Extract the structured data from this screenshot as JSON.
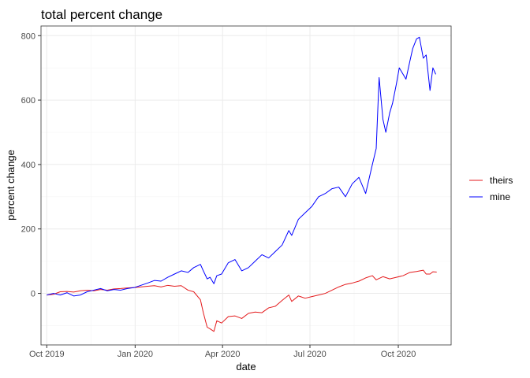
{
  "chart_data": {
    "type": "line",
    "title": "total percent change",
    "xlabel": "date",
    "ylabel": "percent change",
    "xlim": [
      "2019-09-25",
      "2020-11-25"
    ],
    "ylim": [
      -160,
      830
    ],
    "x_ticks": [
      {
        "date": "2019-10-01",
        "label": "Oct 2019"
      },
      {
        "date": "2020-01-01",
        "label": "Jan 2020"
      },
      {
        "date": "2020-04-01",
        "label": "Apr 2020"
      },
      {
        "date": "2020-07-01",
        "label": "Jul 2020"
      },
      {
        "date": "2020-10-01",
        "label": "Oct 2020"
      }
    ],
    "y_ticks": [
      0,
      200,
      400,
      600,
      800
    ],
    "grid": true,
    "legend_position": "right",
    "series": [
      {
        "name": "theirs",
        "color": "#e41a1c",
        "points": [
          [
            "2019-10-01",
            -5
          ],
          [
            "2019-10-08",
            -3
          ],
          [
            "2019-10-15",
            5
          ],
          [
            "2019-10-22",
            6
          ],
          [
            "2019-10-29",
            4
          ],
          [
            "2019-11-05",
            8
          ],
          [
            "2019-11-12",
            10
          ],
          [
            "2019-11-19",
            8
          ],
          [
            "2019-11-26",
            12
          ],
          [
            "2019-12-03",
            10
          ],
          [
            "2019-12-10",
            14
          ],
          [
            "2019-12-17",
            15
          ],
          [
            "2019-12-24",
            17
          ],
          [
            "2019-12-31",
            18
          ],
          [
            "2020-01-07",
            20
          ],
          [
            "2020-01-14",
            22
          ],
          [
            "2020-01-21",
            24
          ],
          [
            "2020-01-28",
            20
          ],
          [
            "2020-02-04",
            25
          ],
          [
            "2020-02-11",
            22
          ],
          [
            "2020-02-18",
            24
          ],
          [
            "2020-02-25",
            10
          ],
          [
            "2020-03-02",
            5
          ],
          [
            "2020-03-09",
            -20
          ],
          [
            "2020-03-12",
            -60
          ],
          [
            "2020-03-16",
            -105
          ],
          [
            "2020-03-19",
            -110
          ],
          [
            "2020-03-23",
            -118
          ],
          [
            "2020-03-26",
            -85
          ],
          [
            "2020-03-31",
            -92
          ],
          [
            "2020-04-07",
            -72
          ],
          [
            "2020-04-14",
            -70
          ],
          [
            "2020-04-21",
            -78
          ],
          [
            "2020-04-28",
            -62
          ],
          [
            "2020-05-05",
            -58
          ],
          [
            "2020-05-12",
            -60
          ],
          [
            "2020-05-19",
            -45
          ],
          [
            "2020-05-26",
            -40
          ],
          [
            "2020-06-02",
            -22
          ],
          [
            "2020-06-09",
            -5
          ],
          [
            "2020-06-12",
            -25
          ],
          [
            "2020-06-19",
            -8
          ],
          [
            "2020-06-26",
            -15
          ],
          [
            "2020-07-03",
            -10
          ],
          [
            "2020-07-10",
            -5
          ],
          [
            "2020-07-17",
            0
          ],
          [
            "2020-07-24",
            10
          ],
          [
            "2020-07-31",
            20
          ],
          [
            "2020-08-07",
            28
          ],
          [
            "2020-08-14",
            32
          ],
          [
            "2020-08-21",
            38
          ],
          [
            "2020-08-28",
            48
          ],
          [
            "2020-09-04",
            55
          ],
          [
            "2020-09-08",
            42
          ],
          [
            "2020-09-15",
            52
          ],
          [
            "2020-09-22",
            45
          ],
          [
            "2020-09-29",
            50
          ],
          [
            "2020-10-06",
            55
          ],
          [
            "2020-10-13",
            65
          ],
          [
            "2020-10-20",
            68
          ],
          [
            "2020-10-27",
            72
          ],
          [
            "2020-10-30",
            60
          ],
          [
            "2020-11-03",
            60
          ],
          [
            "2020-11-06",
            67
          ],
          [
            "2020-11-10",
            66
          ]
        ]
      },
      {
        "name": "mine",
        "color": "#0000ff",
        "points": [
          [
            "2019-10-01",
            -5
          ],
          [
            "2019-10-08",
            0
          ],
          [
            "2019-10-15",
            -5
          ],
          [
            "2019-10-22",
            2
          ],
          [
            "2019-10-29",
            -8
          ],
          [
            "2019-11-05",
            -5
          ],
          [
            "2019-11-12",
            5
          ],
          [
            "2019-11-19",
            10
          ],
          [
            "2019-11-26",
            15
          ],
          [
            "2019-12-03",
            8
          ],
          [
            "2019-12-10",
            12
          ],
          [
            "2019-12-17",
            10
          ],
          [
            "2019-12-24",
            15
          ],
          [
            "2019-12-31",
            18
          ],
          [
            "2020-01-07",
            25
          ],
          [
            "2020-01-14",
            32
          ],
          [
            "2020-01-21",
            40
          ],
          [
            "2020-01-28",
            38
          ],
          [
            "2020-02-04",
            50
          ],
          [
            "2020-02-11",
            60
          ],
          [
            "2020-02-18",
            70
          ],
          [
            "2020-02-25",
            65
          ],
          [
            "2020-03-02",
            80
          ],
          [
            "2020-03-09",
            90
          ],
          [
            "2020-03-12",
            70
          ],
          [
            "2020-03-16",
            45
          ],
          [
            "2020-03-19",
            50
          ],
          [
            "2020-03-23",
            30
          ],
          [
            "2020-03-26",
            55
          ],
          [
            "2020-03-31",
            60
          ],
          [
            "2020-04-07",
            95
          ],
          [
            "2020-04-14",
            105
          ],
          [
            "2020-04-21",
            70
          ],
          [
            "2020-04-28",
            80
          ],
          [
            "2020-05-05",
            100
          ],
          [
            "2020-05-12",
            120
          ],
          [
            "2020-05-19",
            110
          ],
          [
            "2020-05-26",
            130
          ],
          [
            "2020-06-02",
            150
          ],
          [
            "2020-06-09",
            195
          ],
          [
            "2020-06-12",
            180
          ],
          [
            "2020-06-19",
            230
          ],
          [
            "2020-06-26",
            250
          ],
          [
            "2020-07-03",
            270
          ],
          [
            "2020-07-10",
            300
          ],
          [
            "2020-07-17",
            310
          ],
          [
            "2020-07-24",
            325
          ],
          [
            "2020-07-31",
            330
          ],
          [
            "2020-08-07",
            300
          ],
          [
            "2020-08-14",
            340
          ],
          [
            "2020-08-21",
            360
          ],
          [
            "2020-08-28",
            310
          ],
          [
            "2020-09-04",
            400
          ],
          [
            "2020-09-08",
            450
          ],
          [
            "2020-09-11",
            670
          ],
          [
            "2020-09-15",
            540
          ],
          [
            "2020-09-18",
            500
          ],
          [
            "2020-09-22",
            560
          ],
          [
            "2020-09-25",
            590
          ],
          [
            "2020-09-29",
            650
          ],
          [
            "2020-10-02",
            700
          ],
          [
            "2020-10-06",
            680
          ],
          [
            "2020-10-09",
            665
          ],
          [
            "2020-10-13",
            720
          ],
          [
            "2020-10-16",
            760
          ],
          [
            "2020-10-20",
            790
          ],
          [
            "2020-10-23",
            795
          ],
          [
            "2020-10-27",
            730
          ],
          [
            "2020-10-30",
            740
          ],
          [
            "2020-11-03",
            630
          ],
          [
            "2020-11-06",
            700
          ],
          [
            "2020-11-09",
            680
          ]
        ]
      }
    ]
  }
}
